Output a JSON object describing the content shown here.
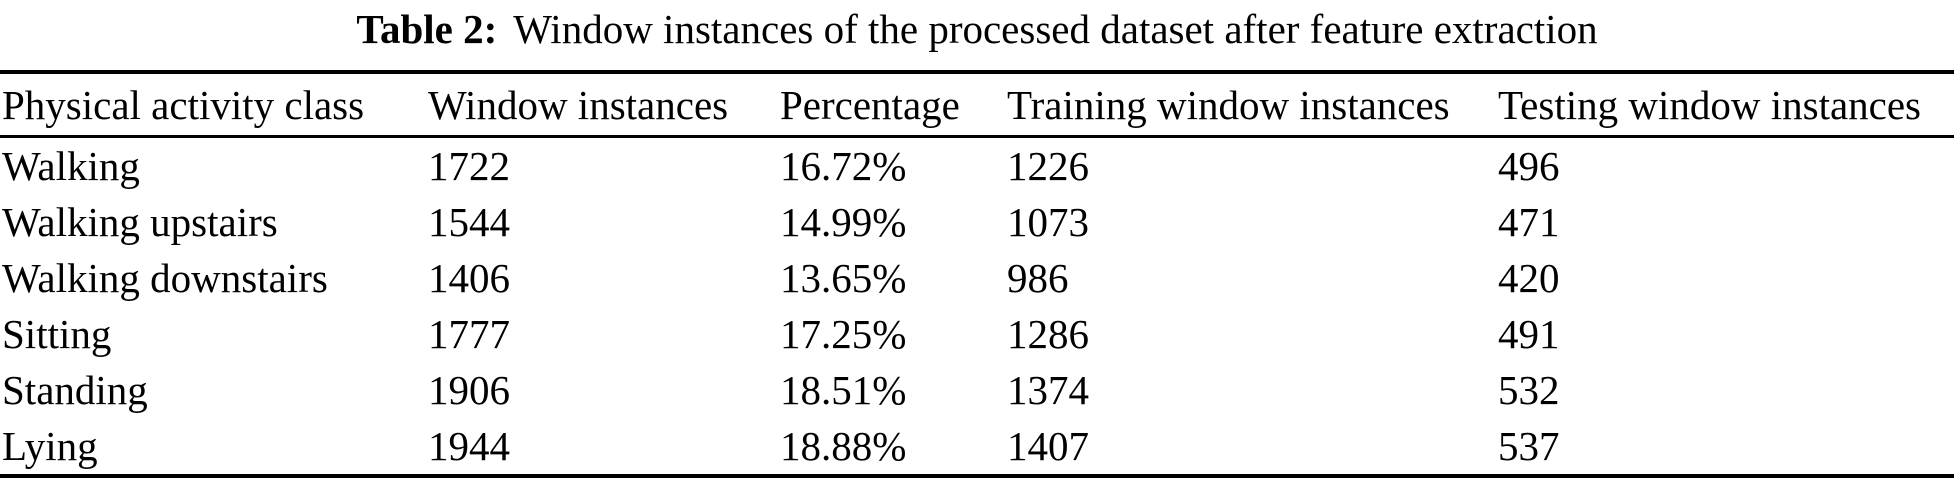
{
  "caption": {
    "label": "Table 2:",
    "text": "Window instances of the processed dataset after feature extraction"
  },
  "columns": [
    "Physical activity class",
    "Window instances",
    "Percentage",
    "Training window instances",
    "Testing window instances"
  ],
  "rows": [
    [
      "Walking",
      "1722",
      "16.72%",
      "1226",
      "496"
    ],
    [
      "Walking upstairs",
      "1544",
      "14.99%",
      "1073",
      "471"
    ],
    [
      "Walking downstairs",
      "1406",
      "13.65%",
      "986",
      "420"
    ],
    [
      "Sitting",
      "1777",
      "17.25%",
      "1286",
      "491"
    ],
    [
      "Standing",
      "1906",
      "18.51%",
      "1374",
      "532"
    ],
    [
      "Lying",
      "1944",
      "18.88%",
      "1407",
      "537"
    ]
  ],
  "colors": {
    "text": "#000000",
    "background": "#ffffff",
    "rule": "#000000"
  }
}
